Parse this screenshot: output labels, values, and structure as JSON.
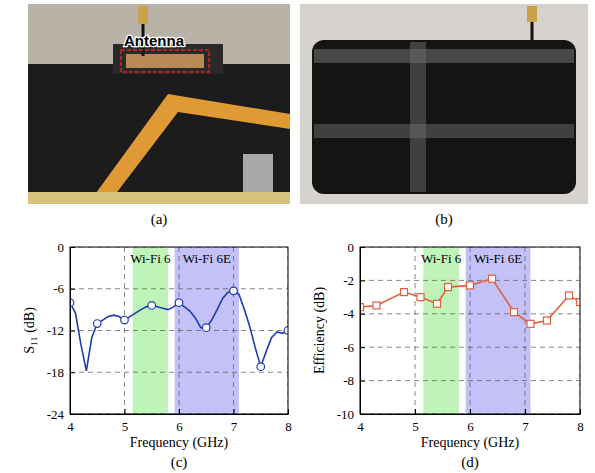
{
  "photos": [
    {
      "caption": "(a)",
      "annotation": "Antenna"
    },
    {
      "caption": "(b)"
    }
  ],
  "chart_data": [
    {
      "type": "line",
      "caption": "(c)",
      "x_label": "Frequency (GHz)",
      "y_label": "S₁₁ (dB)",
      "xlim": [
        4,
        8
      ],
      "xticks": [
        4,
        5,
        6,
        7,
        8
      ],
      "ylim": [
        -24,
        0
      ],
      "yticks": [
        -24,
        -18,
        -12,
        -6,
        0
      ],
      "grid": true,
      "bands": [
        {
          "label": "Wi-Fi 6",
          "x": [
            5.15,
            5.8
          ],
          "color": "#b4f2ac"
        },
        {
          "label": "Wi-Fi 6E",
          "x": [
            5.92,
            7.1
          ],
          "color": "#b9b6f6"
        }
      ],
      "x": [
        4.0,
        4.1,
        4.2,
        4.3,
        4.4,
        4.5,
        4.6,
        4.7,
        4.8,
        4.9,
        5.0,
        5.1,
        5.2,
        5.3,
        5.4,
        5.5,
        5.6,
        5.7,
        5.8,
        5.9,
        6.0,
        6.1,
        6.2,
        6.3,
        6.4,
        6.5,
        6.6,
        6.7,
        6.8,
        6.9,
        7.0,
        7.1,
        7.2,
        7.3,
        7.4,
        7.5,
        7.6,
        7.7,
        7.8,
        7.9,
        8.0
      ],
      "series": [
        {
          "color": "#1f3cb0",
          "marker": "circle",
          "line_style": "solid",
          "values": [
            -8,
            -9.5,
            -14,
            -17.8,
            -13,
            -11,
            -10.5,
            -10,
            -9.8,
            -10,
            -10.5,
            -10,
            -9.5,
            -9,
            -8.6,
            -8.4,
            -8.6,
            -8.8,
            -9,
            -8.6,
            -8,
            -8.6,
            -9.2,
            -10.2,
            -11.6,
            -11.6,
            -10.5,
            -9,
            -7.4,
            -6.5,
            -6.3,
            -6.8,
            -9,
            -11.5,
            -14.5,
            -17.2,
            -15,
            -13,
            -12.2,
            -12.4,
            -12
          ]
        }
      ]
    },
    {
      "type": "line",
      "caption": "(d)",
      "x_label": "Frequency (GHz)",
      "y_label": "Efficiency (dB)",
      "xlim": [
        4,
        8
      ],
      "xticks": [
        4,
        5,
        6,
        7,
        8
      ],
      "ylim": [
        -10,
        0
      ],
      "yticks": [
        -10,
        -8,
        -6,
        -4,
        -2,
        0
      ],
      "grid": true,
      "bands": [
        {
          "label": "Wi-Fi 6",
          "x": [
            5.15,
            5.8
          ],
          "color": "#b4f2ac"
        },
        {
          "label": "Wi-Fi 6E",
          "x": [
            5.92,
            7.1
          ],
          "color": "#b9b6f6"
        }
      ],
      "x": [
        4.0,
        4.3,
        4.8,
        5.1,
        5.4,
        5.6,
        6.0,
        6.4,
        6.8,
        7.1,
        7.4,
        7.8,
        8.0
      ],
      "series": [
        {
          "color": "#e2603c",
          "marker": "square",
          "line_style": "solid",
          "values": [
            -3.6,
            -3.5,
            -2.7,
            -3.0,
            -3.4,
            -2.4,
            -2.3,
            -1.9,
            -3.9,
            -4.6,
            -4.4,
            -2.9,
            -3.3
          ]
        }
      ]
    }
  ]
}
